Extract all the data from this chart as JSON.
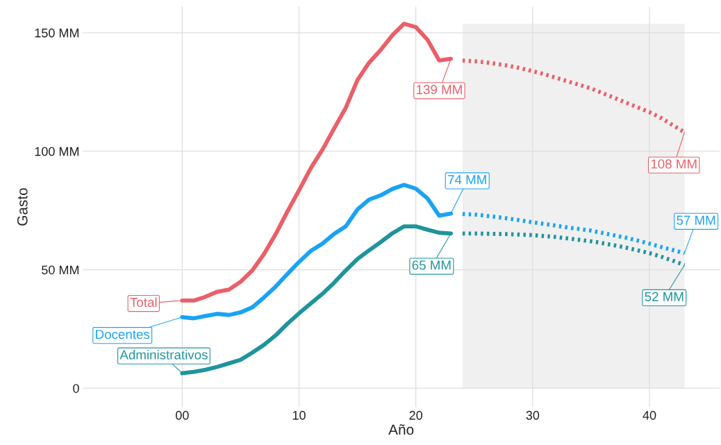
{
  "chart_data": {
    "type": "line",
    "xlabel": "Año",
    "ylabel": "Gasto",
    "xlim": [
      -8.5,
      46
    ],
    "ylim": [
      -8,
      161
    ],
    "xticks": [
      {
        "value": 0,
        "label": "00"
      },
      10,
      20,
      30,
      40
    ],
    "yticks": [
      0,
      {
        "value": 50,
        "label": "50 MM"
      },
      {
        "value": 100,
        "label": "100 MM"
      },
      {
        "value": 150,
        "label": "150 MM"
      }
    ],
    "grid": true,
    "legend": false,
    "bands": [
      {
        "axis": "x",
        "from": 24,
        "to": 43,
        "color": "#f0f0f0"
      }
    ],
    "series": [
      {
        "color": "#eb5f68",
        "line_style": "solid",
        "x": [
          0,
          1,
          2,
          3,
          4,
          5,
          6,
          7,
          8,
          9,
          10,
          11,
          12,
          13,
          14,
          15,
          16,
          17,
          18,
          19,
          20,
          21,
          22,
          23
        ],
        "values": [
          37,
          37,
          38.6,
          40.7,
          41.6,
          44.9,
          49.7,
          56.6,
          65,
          74.5,
          83.5,
          92.8,
          100.6,
          109.6,
          118.3,
          130,
          137.4,
          142.8,
          149,
          153.8,
          152.4,
          147,
          138.3,
          139
        ]
      },
      {
        "color": "#1aa3f5",
        "line_style": "solid",
        "x": [
          0,
          1,
          2,
          3,
          4,
          5,
          6,
          7,
          8,
          9,
          10,
          11,
          12,
          13,
          14,
          15,
          16,
          17,
          18,
          19,
          20,
          21,
          22,
          23
        ],
        "values": [
          30,
          29.5,
          30.5,
          31.4,
          30.9,
          32,
          34.1,
          38.3,
          42.9,
          48.2,
          53.3,
          57.9,
          61,
          65.1,
          68.3,
          75.4,
          79.6,
          81.4,
          84.1,
          85.8,
          84.2,
          80.1,
          72.8,
          73.7
        ]
      },
      {
        "color": "#1f949c",
        "line_style": "solid",
        "x": [
          0,
          1,
          2,
          3,
          4,
          5,
          6,
          7,
          8,
          9,
          10,
          11,
          12,
          13,
          14,
          15,
          16,
          17,
          18,
          19,
          20,
          21,
          22,
          23
        ],
        "values": [
          6.3,
          6.9,
          7.8,
          9,
          10.5,
          12,
          15,
          18.3,
          22.3,
          27.2,
          31.6,
          35.7,
          39.8,
          44.5,
          49.7,
          54.5,
          58.2,
          61.7,
          65.4,
          68.3,
          68.3,
          66.9,
          65.6,
          65.3
        ]
      },
      {
        "color": "#eb5f68",
        "line_style": "dotted",
        "x": [
          24,
          25,
          26,
          27,
          28,
          29,
          30,
          31,
          32,
          33,
          34,
          35,
          36,
          37,
          38,
          39,
          40,
          41,
          42,
          43
        ],
        "values": [
          138.3,
          138,
          137.5,
          136.8,
          136,
          135,
          133.8,
          132.5,
          131,
          129.5,
          128,
          126.5,
          124.5,
          122.5,
          120.5,
          118.5,
          116.5,
          114,
          111,
          108
        ]
      },
      {
        "color": "#1aa3f5",
        "line_style": "dotted",
        "x": [
          24,
          25,
          26,
          27,
          28,
          29,
          30,
          31,
          32,
          33,
          34,
          35,
          36,
          37,
          38,
          39,
          40,
          41,
          42,
          43
        ],
        "values": [
          73.5,
          73.3,
          72.8,
          72.2,
          71.5,
          70.8,
          70,
          69.3,
          68.6,
          67.8,
          67.2,
          66.5,
          65.5,
          64.5,
          63.5,
          62.3,
          61,
          59.6,
          58.3,
          57
        ]
      },
      {
        "color": "#1f949c",
        "line_style": "dotted",
        "x": [
          24,
          25,
          26,
          27,
          28,
          29,
          30,
          31,
          32,
          33,
          34,
          35,
          36,
          37,
          38,
          39,
          40,
          41,
          42,
          43
        ],
        "values": [
          65.3,
          65.3,
          65.2,
          65.1,
          65,
          64.8,
          64.6,
          64.2,
          63.8,
          63.2,
          62.6,
          62,
          61.2,
          60.3,
          59.3,
          58.2,
          57,
          55.5,
          53.8,
          52
        ]
      }
    ],
    "annotations": [
      {
        "text": "Total",
        "x": 0,
        "y": 37
      },
      {
        "text": "Docentes",
        "x": 0,
        "y": 30
      },
      {
        "text": "Administrativos",
        "x": 0,
        "y": 6.3
      },
      {
        "text": "139 MM",
        "x": 23,
        "y": 139
      },
      {
        "text": "74 MM",
        "x": 23,
        "y": 73.7
      },
      {
        "text": "65 MM",
        "x": 23,
        "y": 65.3
      },
      {
        "text": "108 MM",
        "x": 43,
        "y": 108
      },
      {
        "text": "57 MM",
        "x": 43,
        "y": 57
      },
      {
        "text": "52 MM",
        "x": 43,
        "y": 52
      }
    ]
  }
}
